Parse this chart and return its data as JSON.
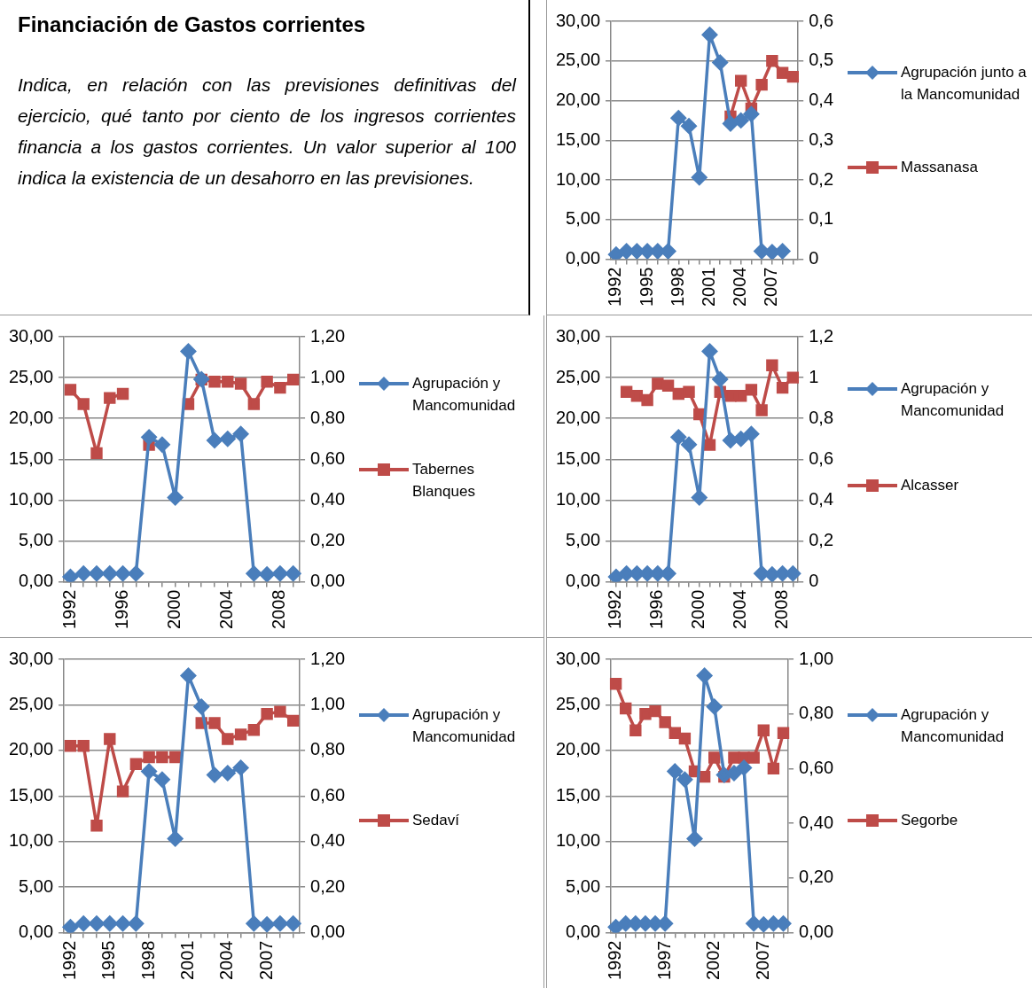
{
  "chart_data": [
    {
      "type": "other",
      "title": "Financiación de Gastos corrientes",
      "annotations": [
        "Indica, en relación con las previsiones definitivas del ejercicio, qué tanto por ciento de los ingresos corrientes financia a los gastos corrientes. Un valor superior al 100 indica la existencia de un desahorro en las previsiones."
      ]
    },
    {
      "type": "line",
      "categories": [
        "1992",
        null,
        null,
        "1995",
        null,
        null,
        "1998",
        null,
        null,
        "2001",
        null,
        null,
        "2004",
        null,
        null,
        "2007",
        null,
        null
      ],
      "series": [
        {
          "name": "Agrupación junto a la Mancomunidad",
          "color": "#4a7ebb",
          "marker": "diamond",
          "values": [
            0.6,
            1.0,
            1.0,
            1.0,
            1.0,
            1.0,
            17.8,
            16.8,
            10.3,
            28.3,
            24.8,
            17.1,
            17.5,
            18.3,
            1.0,
            0.9,
            1.0,
            null
          ]
        },
        {
          "name": "Massanasa",
          "color": "#be4b48",
          "marker": "square",
          "axis": "y2",
          "values": [
            null,
            null,
            null,
            null,
            null,
            null,
            null,
            null,
            null,
            null,
            null,
            0.36,
            0.45,
            0.38,
            0.44,
            0.5,
            0.47,
            0.46
          ]
        }
      ],
      "ylim": [
        0,
        30
      ],
      "yticks": [
        {
          "value": 0,
          "label": "0,00"
        },
        {
          "value": 5,
          "label": "5,00"
        },
        {
          "value": 10,
          "label": "10,00"
        },
        {
          "value": 15,
          "label": "15,00"
        },
        {
          "value": 20,
          "label": "20,00"
        },
        {
          "value": 25,
          "label": "25,00"
        },
        {
          "value": 30,
          "label": "30,00"
        }
      ],
      "y2lim": [
        0,
        0.6
      ],
      "y2ticks": [
        {
          "value": 0,
          "label": "0"
        },
        {
          "value": 0.1,
          "label": "0,1"
        },
        {
          "value": 0.2,
          "label": "0,2"
        },
        {
          "value": 0.3,
          "label": "0,3"
        },
        {
          "value": 0.4,
          "label": "0,4"
        },
        {
          "value": 0.5,
          "label": "0,5"
        },
        {
          "value": 0.6,
          "label": "0,6"
        }
      ],
      "grid": "y",
      "legend": "right"
    },
    {
      "type": "line",
      "categories": [
        "1992",
        null,
        null,
        null,
        "1996",
        null,
        null,
        null,
        "2000",
        null,
        null,
        null,
        "2004",
        null,
        null,
        null,
        "2008",
        null
      ],
      "series": [
        {
          "name": "Agrupación y Mancomunidad",
          "color": "#4a7ebb",
          "marker": "diamond",
          "values": [
            0.6,
            1.0,
            1.0,
            1.0,
            1.0,
            1.0,
            17.7,
            16.8,
            10.3,
            28.2,
            24.8,
            17.3,
            17.5,
            18.1,
            1.0,
            0.9,
            1.0,
            1.0
          ]
        },
        {
          "name": "Tabernes Blanques",
          "color": "#be4b48",
          "marker": "square",
          "axis": "y2",
          "values": [
            0.94,
            0.87,
            0.63,
            0.9,
            0.92,
            null,
            0.67,
            null,
            null,
            0.87,
            0.99,
            0.98,
            0.98,
            0.97,
            0.87,
            0.98,
            0.95,
            0.99
          ]
        }
      ],
      "ylim": [
        0,
        30
      ],
      "yticks": [
        {
          "value": 0,
          "label": "0,00"
        },
        {
          "value": 5,
          "label": "5,00"
        },
        {
          "value": 10,
          "label": "10,00"
        },
        {
          "value": 15,
          "label": "15,00"
        },
        {
          "value": 20,
          "label": "20,00"
        },
        {
          "value": 25,
          "label": "25,00"
        },
        {
          "value": 30,
          "label": "30,00"
        }
      ],
      "y2lim": [
        0,
        1.2
      ],
      "y2ticks": [
        {
          "value": 0,
          "label": "0,00"
        },
        {
          "value": 0.2,
          "label": "0,20"
        },
        {
          "value": 0.4,
          "label": "0,40"
        },
        {
          "value": 0.6,
          "label": "0,60"
        },
        {
          "value": 0.8,
          "label": "0,80"
        },
        {
          "value": 1,
          "label": "1,00"
        },
        {
          "value": 1.2,
          "label": "1,20"
        }
      ],
      "grid": "y",
      "legend": "right"
    },
    {
      "type": "line",
      "categories": [
        "1992",
        null,
        null,
        null,
        "1996",
        null,
        null,
        null,
        "2000",
        null,
        null,
        null,
        "2004",
        null,
        null,
        null,
        "2008",
        null
      ],
      "series": [
        {
          "name": "Agrupación y Mancomunidad",
          "color": "#4a7ebb",
          "marker": "diamond",
          "values": [
            0.6,
            1.0,
            1.0,
            1.0,
            1.0,
            1.0,
            17.7,
            16.8,
            10.3,
            28.2,
            24.8,
            17.3,
            17.5,
            18.1,
            1.0,
            0.9,
            1.0,
            1.0
          ]
        },
        {
          "name": "Alcasser",
          "color": "#be4b48",
          "marker": "square",
          "axis": "y2",
          "values": [
            null,
            0.93,
            0.91,
            0.89,
            0.97,
            0.96,
            0.92,
            0.93,
            0.82,
            0.67,
            0.93,
            0.91,
            0.91,
            0.94,
            0.84,
            1.06,
            0.95,
            1.0
          ]
        }
      ],
      "ylim": [
        0,
        30
      ],
      "yticks": [
        {
          "value": 0,
          "label": "0,00"
        },
        {
          "value": 5,
          "label": "5,00"
        },
        {
          "value": 10,
          "label": "10,00"
        },
        {
          "value": 15,
          "label": "15,00"
        },
        {
          "value": 20,
          "label": "20,00"
        },
        {
          "value": 25,
          "label": "25,00"
        },
        {
          "value": 30,
          "label": "30,00"
        }
      ],
      "y2lim": [
        0,
        1.2
      ],
      "y2ticks": [
        {
          "value": 0,
          "label": "0"
        },
        {
          "value": 0.2,
          "label": "0,2"
        },
        {
          "value": 0.4,
          "label": "0,4"
        },
        {
          "value": 0.6,
          "label": "0,6"
        },
        {
          "value": 0.8,
          "label": "0,8"
        },
        {
          "value": 1,
          "label": "1"
        },
        {
          "value": 1.2,
          "label": "1,2"
        }
      ],
      "grid": "y",
      "legend": "right"
    },
    {
      "type": "line",
      "categories": [
        "1992",
        null,
        null,
        "1995",
        null,
        null,
        "1998",
        null,
        null,
        "2001",
        null,
        null,
        "2004",
        null,
        null,
        "2007",
        null,
        null
      ],
      "series": [
        {
          "name": "Agrupación y Mancomunidad",
          "color": "#4a7ebb",
          "marker": "diamond",
          "values": [
            0.6,
            1.0,
            1.0,
            1.0,
            1.0,
            1.0,
            17.7,
            16.8,
            10.3,
            28.2,
            24.8,
            17.3,
            17.5,
            18.1,
            1.0,
            0.9,
            1.0,
            1.0
          ]
        },
        {
          "name": "Sedaví",
          "color": "#be4b48",
          "marker": "square",
          "axis": "y2",
          "values": [
            0.82,
            0.82,
            0.47,
            0.85,
            0.62,
            0.74,
            0.77,
            0.77,
            0.77,
            null,
            0.92,
            0.92,
            0.85,
            0.87,
            0.89,
            0.96,
            0.97,
            0.93
          ]
        }
      ],
      "ylim": [
        0,
        30
      ],
      "yticks": [
        {
          "value": 0,
          "label": "0,00"
        },
        {
          "value": 5,
          "label": "5,00"
        },
        {
          "value": 10,
          "label": "10,00"
        },
        {
          "value": 15,
          "label": "15,00"
        },
        {
          "value": 20,
          "label": "20,00"
        },
        {
          "value": 25,
          "label": "25,00"
        },
        {
          "value": 30,
          "label": "30,00"
        }
      ],
      "y2lim": [
        0,
        1.2
      ],
      "y2ticks": [
        {
          "value": 0,
          "label": "0,00"
        },
        {
          "value": 0.2,
          "label": "0,20"
        },
        {
          "value": 0.4,
          "label": "0,40"
        },
        {
          "value": 0.6,
          "label": "0,60"
        },
        {
          "value": 0.8,
          "label": "0,80"
        },
        {
          "value": 1,
          "label": "1,00"
        },
        {
          "value": 1.2,
          "label": "1,20"
        }
      ],
      "grid": "y",
      "legend": "right"
    },
    {
      "type": "line",
      "categories": [
        "1992",
        null,
        null,
        null,
        null,
        "1997",
        null,
        null,
        null,
        null,
        "2002",
        null,
        null,
        null,
        null,
        "2007",
        null,
        null
      ],
      "series": [
        {
          "name": "Agrupación y Mancomunidad",
          "color": "#4a7ebb",
          "marker": "diamond",
          "values": [
            0.6,
            1.0,
            1.0,
            1.0,
            1.0,
            1.0,
            17.7,
            16.8,
            10.3,
            28.2,
            24.8,
            17.3,
            17.5,
            18.1,
            1.0,
            0.9,
            1.0,
            1.0
          ]
        },
        {
          "name": "Segorbe",
          "color": "#be4b48",
          "marker": "square",
          "axis": "y2",
          "values": [
            0.91,
            0.82,
            0.74,
            0.8,
            0.81,
            0.77,
            0.73,
            0.71,
            0.59,
            0.57,
            0.64,
            0.57,
            0.64,
            0.64,
            0.64,
            0.74,
            0.6,
            0.73
          ]
        }
      ],
      "ylim": [
        0,
        30
      ],
      "yticks": [
        {
          "value": 0,
          "label": "0,00"
        },
        {
          "value": 5,
          "label": "5,00"
        },
        {
          "value": 10,
          "label": "10,00"
        },
        {
          "value": 15,
          "label": "15,00"
        },
        {
          "value": 20,
          "label": "20,00"
        },
        {
          "value": 25,
          "label": "25,00"
        },
        {
          "value": 30,
          "label": "30,00"
        }
      ],
      "y2lim": [
        0,
        1
      ],
      "y2ticks": [
        {
          "value": 0,
          "label": "0,00"
        },
        {
          "value": 0.2,
          "label": "0,20"
        },
        {
          "value": 0.4,
          "label": "0,40"
        },
        {
          "value": 0.6,
          "label": "0,60"
        },
        {
          "value": 0.8,
          "label": "0,80"
        },
        {
          "value": 1,
          "label": "1,00"
        }
      ],
      "grid": "y",
      "legend": "right"
    }
  ]
}
